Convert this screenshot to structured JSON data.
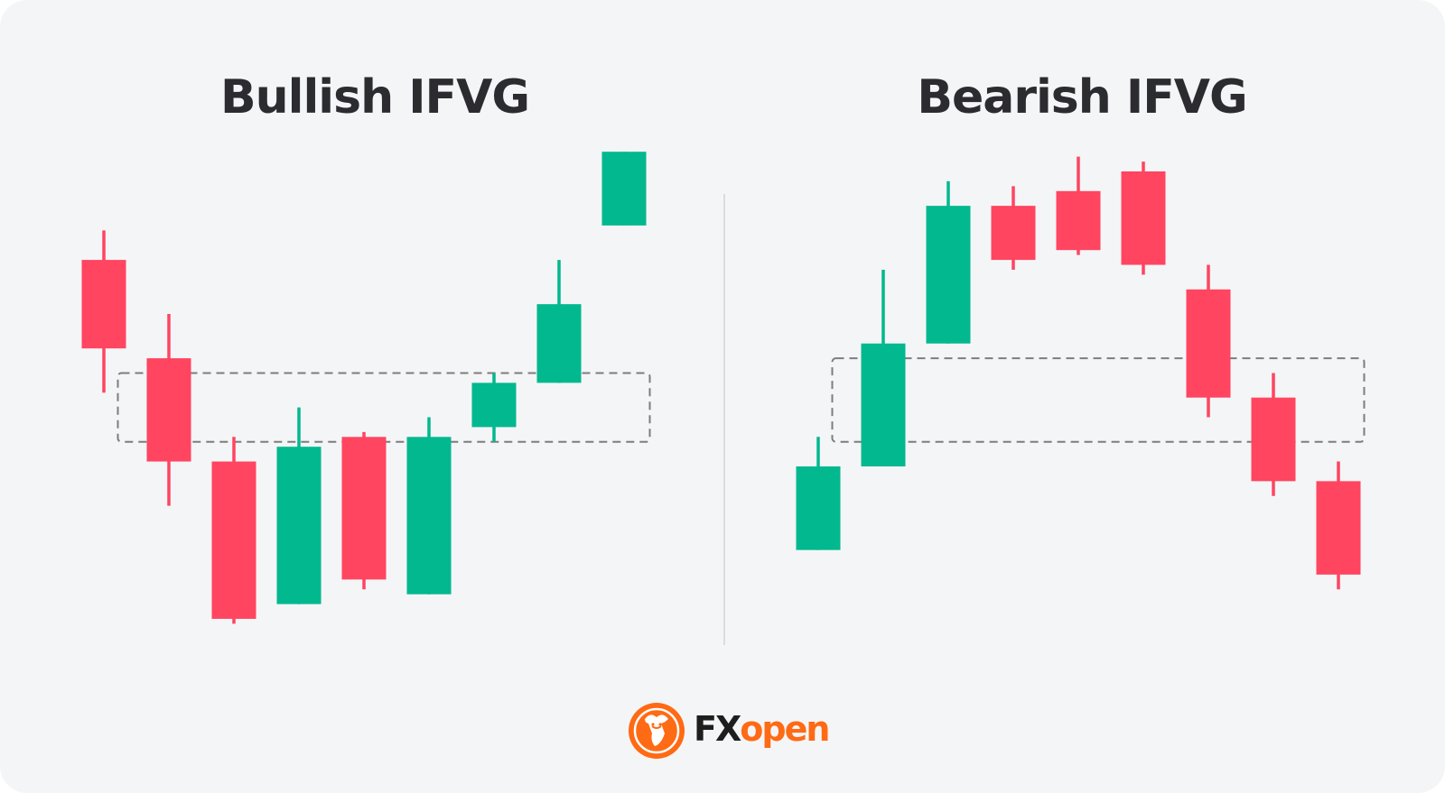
{
  "colors": {
    "background": "#f4f5f7",
    "bullish": "#02b88f",
    "bearish": "#ff4560",
    "gap_box": "#7d7d7d",
    "divider": "#d2d4d8",
    "title": "#2b2b30",
    "brand_orange": "#ff6a14"
  },
  "logo": {
    "icon": "fxopen-bull-emblem-icon",
    "text_dark": "FX",
    "text_accent": "open"
  },
  "chart_data": [
    {
      "type": "candlestick",
      "title": "Bullish IFVG",
      "price_range": [
        0,
        100
      ],
      "candles": [
        {
          "direction": "bearish",
          "open": 82,
          "high": 88,
          "low": 55,
          "close": 64
        },
        {
          "direction": "bearish",
          "open": 62,
          "high": 71,
          "low": 32,
          "close": 41
        },
        {
          "direction": "bearish",
          "open": 41,
          "high": 46,
          "low": 8,
          "close": 9
        },
        {
          "direction": "bullish",
          "open": 12,
          "high": 52,
          "low": 12,
          "close": 44
        },
        {
          "direction": "bearish",
          "open": 46,
          "high": 47,
          "low": 15,
          "close": 17
        },
        {
          "direction": "bullish",
          "open": 14,
          "high": 50,
          "low": 14,
          "close": 46
        },
        {
          "direction": "bullish",
          "open": 48,
          "high": 59,
          "low": 45,
          "close": 57
        },
        {
          "direction": "bullish",
          "open": 57,
          "high": 82,
          "low": 57,
          "close": 73
        },
        {
          "direction": "bullish",
          "open": 89,
          "high": 104,
          "low": 89,
          "close": 104
        }
      ],
      "gap_zone": {
        "from_candle": 1,
        "to_candle": 9,
        "low": 45,
        "high": 59,
        "style": "dashed"
      }
    },
    {
      "type": "candlestick",
      "title": "Bearish IFVG",
      "price_range": [
        0,
        100
      ],
      "candles": [
        {
          "direction": "bullish",
          "open": 23,
          "high": 46,
          "low": 23,
          "close": 40
        },
        {
          "direction": "bullish",
          "open": 40,
          "high": 80,
          "low": 40,
          "close": 65
        },
        {
          "direction": "bullish",
          "open": 65,
          "high": 98,
          "low": 65,
          "close": 93
        },
        {
          "direction": "bearish",
          "open": 93,
          "high": 97,
          "low": 80,
          "close": 82
        },
        {
          "direction": "bearish",
          "open": 96,
          "high": 103,
          "low": 83,
          "close": 84
        },
        {
          "direction": "bearish",
          "open": 100,
          "high": 102,
          "low": 79,
          "close": 81
        },
        {
          "direction": "bearish",
          "open": 76,
          "high": 81,
          "low": 50,
          "close": 54
        },
        {
          "direction": "bearish",
          "open": 54,
          "high": 59,
          "low": 34,
          "close": 37
        },
        {
          "direction": "bearish",
          "open": 37,
          "high": 41,
          "low": 15,
          "close": 18
        }
      ],
      "gap_zone": {
        "from_candle": 1,
        "to_candle": 9,
        "low": 45,
        "high": 62,
        "style": "dashed"
      }
    }
  ]
}
